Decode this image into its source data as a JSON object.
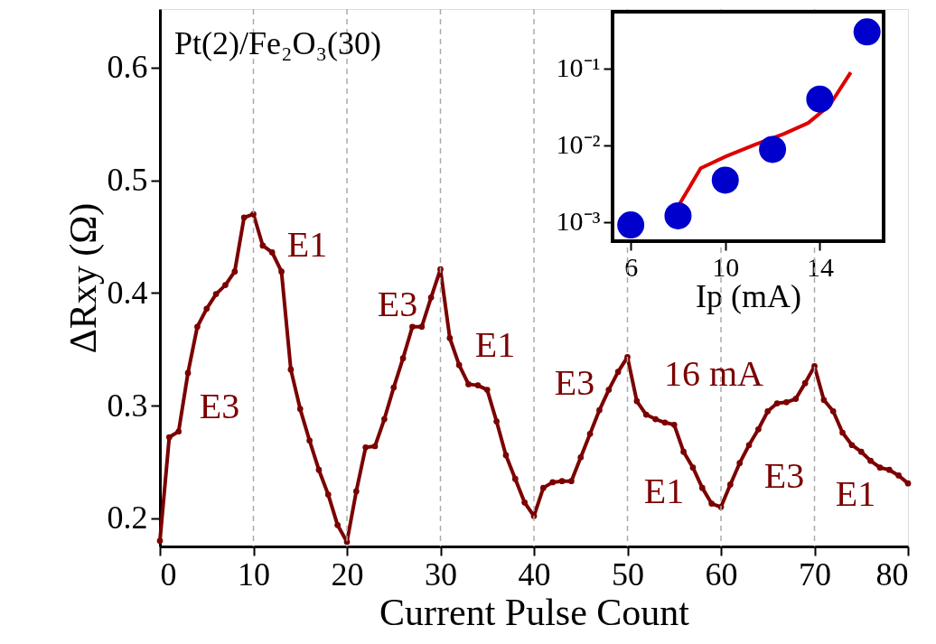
{
  "chart_data": [
    {
      "type": "line",
      "xlabel": "Current Pulse Count",
      "ylabel": "ΔRxy (Ω)",
      "x": [
        0,
        1,
        2,
        3,
        4,
        5,
        6,
        7,
        8,
        9,
        10,
        11,
        12,
        13,
        14,
        15,
        16,
        17,
        18,
        19,
        20,
        21,
        22,
        23,
        24,
        25,
        26,
        27,
        28,
        29,
        30,
        31,
        32,
        33,
        34,
        35,
        36,
        37,
        38,
        39,
        40,
        41,
        42,
        43,
        44,
        45,
        46,
        47,
        48,
        49,
        50,
        51,
        52,
        53,
        54,
        55,
        56,
        57,
        58,
        59,
        60,
        61,
        62,
        63,
        64,
        65,
        66,
        67,
        68,
        69,
        70,
        71,
        72,
        73,
        74,
        75,
        76,
        77,
        78,
        79,
        80
      ],
      "series": [
        {
          "color": "#7b0000",
          "values": [
            0.18,
            0.272,
            0.277,
            0.329,
            0.37,
            0.386,
            0.399,
            0.407,
            0.419,
            0.467,
            0.47,
            0.442,
            0.436,
            0.419,
            0.332,
            0.297,
            0.269,
            0.243,
            0.221,
            0.194,
            0.179,
            0.224,
            0.263,
            0.264,
            0.288,
            0.316,
            0.342,
            0.37,
            0.37,
            0.396,
            0.421,
            0.36,
            0.336,
            0.319,
            0.318,
            0.314,
            0.286,
            0.256,
            0.235,
            0.214,
            0.202,
            0.227,
            0.232,
            0.233,
            0.233,
            0.254,
            0.275,
            0.296,
            0.314,
            0.33,
            0.343,
            0.304,
            0.292,
            0.288,
            0.285,
            0.283,
            0.259,
            0.245,
            0.227,
            0.213,
            0.21,
            0.23,
            0.249,
            0.265,
            0.279,
            0.295,
            0.302,
            0.303,
            0.306,
            0.32,
            0.335,
            0.305,
            0.295,
            0.276,
            0.265,
            0.259,
            0.251,
            0.245,
            0.243,
            0.238,
            0.231
          ]
        }
      ],
      "marker": "circle",
      "line_style": "solid",
      "grid": false,
      "xlim": [
        0,
        80
      ],
      "ylim": [
        0.175,
        0.652
      ],
      "xticks": [
        0,
        10,
        20,
        30,
        40,
        50,
        60,
        70,
        80
      ],
      "yticks": [
        0.2,
        0.3,
        0.4,
        0.5,
        0.6
      ],
      "ref_lines": [
        {
          "axis": "x",
          "value": 10,
          "color": "#aaaaaa",
          "line_style": "dashed"
        },
        {
          "axis": "x",
          "value": 20,
          "color": "#aaaaaa",
          "line_style": "dashed"
        },
        {
          "axis": "x",
          "value": 30,
          "color": "#aaaaaa",
          "line_style": "dashed"
        },
        {
          "axis": "x",
          "value": 40,
          "color": "#aaaaaa",
          "line_style": "dashed"
        },
        {
          "axis": "x",
          "value": 50,
          "color": "#aaaaaa",
          "line_style": "dashed"
        },
        {
          "axis": "x",
          "value": 60,
          "color": "#aaaaaa",
          "line_style": "dashed"
        },
        {
          "axis": "x",
          "value": 70,
          "color": "#aaaaaa",
          "line_style": "dashed"
        }
      ],
      "annotations": [
        "Pt(2)/Fe₂O₃(30)",
        "E3",
        "E1",
        "E3",
        "E1",
        "E3",
        "16 mA",
        "E1",
        "E3",
        "E1"
      ]
    },
    {
      "type": "scatter",
      "xlabel": "Ip (mA)",
      "log": "y",
      "grid": false,
      "series": [
        {
          "type": "scatter",
          "color": "#0000cc",
          "x": [
            6,
            8,
            10,
            12,
            14,
            16
          ],
          "values": [
            0.00091,
            0.0012,
            0.0035,
            0.0088,
            0.04,
            0.3
          ]
        },
        {
          "type": "line",
          "color": "#dd0000",
          "x": [
            8.06,
            8.96,
            10.05,
            11.33,
            12.49,
            13.51,
            14.41,
            15.31
          ],
          "values": [
            0.0017,
            0.005,
            0.0072,
            0.0104,
            0.0141,
            0.0195,
            0.033,
            0.089
          ]
        }
      ],
      "xlim": [
        5.23,
        16.7
      ],
      "ylim": [
        0.00056,
        0.55
      ],
      "xticks": [
        6,
        10,
        14
      ],
      "yticks": [
        {
          "value": 0.001,
          "label": "10⁻³"
        },
        {
          "value": 0.01,
          "label": "10⁻²"
        },
        {
          "value": 0.1,
          "label": "10⁻¹"
        }
      ]
    }
  ]
}
